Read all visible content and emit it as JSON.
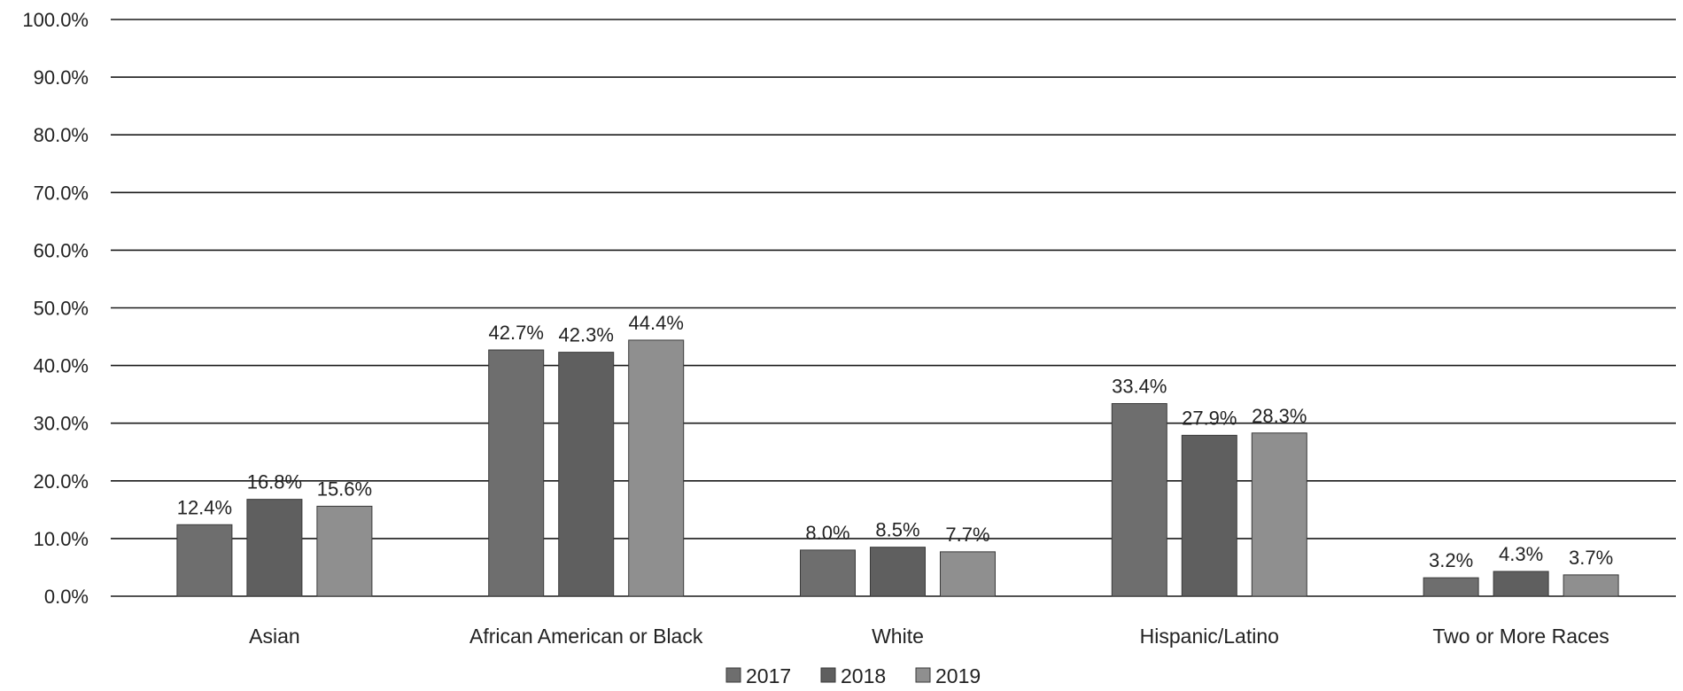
{
  "chart_data": {
    "type": "bar",
    "categories": [
      "Asian",
      "African American or Black",
      "White",
      "Hispanic/Latino",
      "Two or More Races"
    ],
    "series": [
      {
        "name": "2017",
        "values": [
          12.4,
          42.7,
          8.0,
          33.4,
          3.2
        ],
        "labels": [
          "12.4%",
          "42.7%",
          "8.0%",
          "33.4%",
          "3.2%"
        ],
        "color": "#6e6e6e"
      },
      {
        "name": "2018",
        "values": [
          16.8,
          42.3,
          8.5,
          27.9,
          4.3
        ],
        "labels": [
          "16.8%",
          "42.3%",
          "8.5%",
          "27.9%",
          "4.3%"
        ],
        "color": "#5f5f5f"
      },
      {
        "name": "2019",
        "values": [
          15.6,
          44.4,
          7.7,
          28.3,
          3.7
        ],
        "labels": [
          "15.6%",
          "44.4%",
          "7.7%",
          "28.3%",
          "3.7%"
        ],
        "color": "#8f8f8f"
      }
    ],
    "y_ticks": [
      "0.0%",
      "10.0%",
      "20.0%",
      "30.0%",
      "40.0%",
      "50.0%",
      "60.0%",
      "70.0%",
      "80.0%",
      "90.0%",
      "100.0%"
    ],
    "ylim": [
      0,
      100
    ],
    "grid": true,
    "legend_position": "bottom",
    "title": "",
    "xlabel": "",
    "ylabel": ""
  }
}
